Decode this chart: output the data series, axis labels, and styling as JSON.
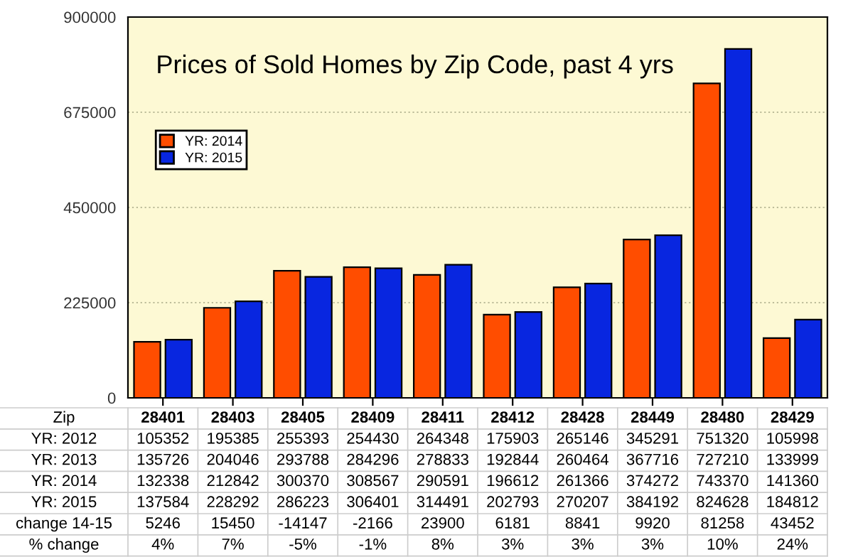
{
  "chart_data": {
    "type": "bar",
    "title": "Prices of Sold Homes by Zip Code, past 4 yrs",
    "xlabel": "Zip",
    "categories": [
      "28401",
      "28403",
      "28405",
      "28409",
      "28411",
      "28412",
      "28428",
      "28449",
      "28480",
      "28429"
    ],
    "series": [
      {
        "name": "YR: 2014",
        "color": "#ff4d00",
        "values": [
          132338,
          212842,
          300370,
          308567,
          290591,
          196612,
          261366,
          374272,
          743370,
          141360
        ]
      },
      {
        "name": "YR: 2015",
        "color": "#0826e0",
        "values": [
          137584,
          228292,
          286223,
          306401,
          314491,
          202793,
          270207,
          384192,
          824628,
          184812
        ]
      }
    ],
    "ylim": [
      0,
      900000
    ],
    "yticks": [
      0,
      225000,
      450000,
      675000,
      900000
    ],
    "grid": "y",
    "legend": "top left",
    "data_labels": true,
    "annotations": [
      "YR: 2012",
      "105352",
      "195385",
      "255393",
      "254430",
      "264348",
      "175903",
      "265146",
      "345291",
      "751320",
      "105998",
      "YR: 2013",
      "135726",
      "204046",
      "293788",
      "284296",
      "278833",
      "192844",
      "260464",
      "367716",
      "727210",
      "133999",
      "change 14-15",
      "5246",
      "15450",
      "-14147",
      "-2166",
      "23900",
      "6181",
      "8841",
      "9920",
      "81258",
      "43452",
      "% change",
      "4%",
      "7%",
      "-5%",
      "-1%",
      "8%",
      "3%",
      "3%",
      "3%",
      "10%",
      "24%"
    ]
  }
}
